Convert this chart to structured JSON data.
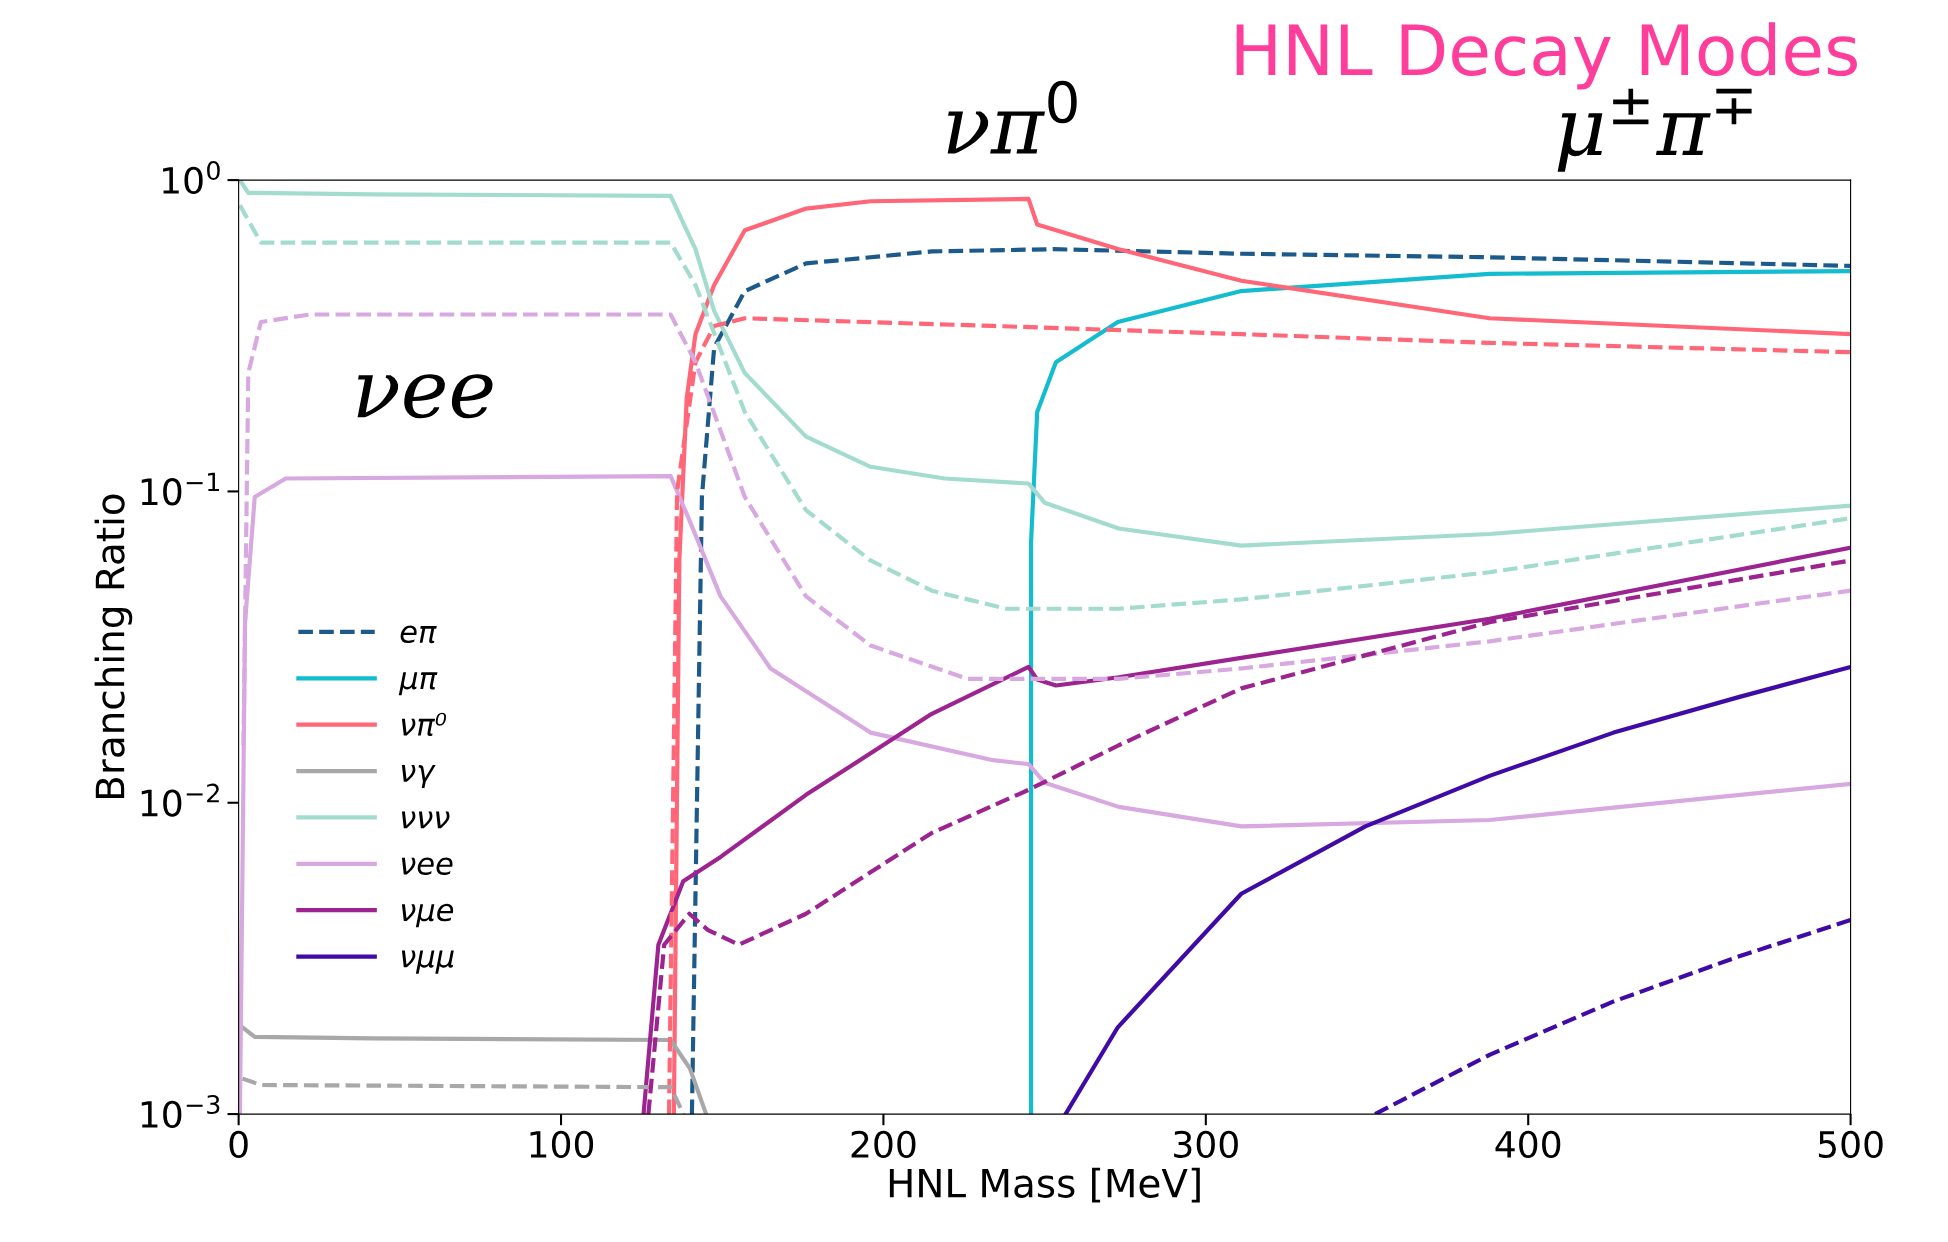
{
  "chart_data": {
    "type": "line",
    "title": "HNL Decay Modes",
    "xlabel": "HNL Mass [MeV]",
    "ylabel": "Branching Ratio",
    "log": "y",
    "xlim": [
      0,
      500
    ],
    "ylim": [
      0.001,
      1
    ],
    "xticks": [
      0,
      100,
      200,
      300,
      400,
      500
    ],
    "yticks": [
      {
        "value": 0.001,
        "label": "10$^{−3}$"
      },
      {
        "value": 0.01,
        "label": "10$^{−2}$"
      },
      {
        "value": 0.1,
        "label": "10$^{−1}$"
      },
      {
        "value": 1,
        "label": "10$^{0}$"
      }
    ],
    "grid": false,
    "legend": "left",
    "marker": "none",
    "annotations": [
      "νπ$^{0}$",
      "μ$^{±}$π$^{∓}$",
      "νee"
    ],
    "series": [
      {
        "name": "eπ",
        "color": "#1c5a8c",
        "line_style": "dashed",
        "x": [
          140.6,
          143.7,
          147.5,
          157,
          176,
          215,
          253,
          311,
          388,
          500
        ],
        "values": [
          0.001,
          0.096,
          0.29,
          0.44,
          0.54,
          0.59,
          0.6,
          0.58,
          0.565,
          0.53
        ]
      },
      {
        "name": "μπ",
        "color": "#13bccf",
        "line_style": "solid",
        "x": [
          245.8,
          245.8,
          247.7,
          253.5,
          272.7,
          311,
          388,
          500
        ],
        "values": [
          0.001,
          0.069,
          0.18,
          0.26,
          0.35,
          0.44,
          0.5,
          0.51
        ]
      },
      {
        "name": "νπ⁰",
        "color": "#ff6677",
        "line_style": "solid",
        "x": [
          135,
          136.7,
          139,
          141.7,
          147.5,
          157,
          176,
          196,
          245,
          247.7,
          273,
          311,
          388,
          500
        ],
        "values": [
          0.001,
          0.06,
          0.2,
          0.32,
          0.46,
          0.69,
          0.81,
          0.855,
          0.87,
          0.72,
          0.6,
          0.475,
          0.36,
          0.32
        ]
      },
      {
        "name": "νγ",
        "color": "#a8a8a8",
        "line_style": "solid",
        "x": [
          1.2,
          5,
          41.6,
          134,
          140,
          145
        ],
        "values": [
          0.0019,
          0.00177,
          0.00175,
          0.00173,
          0.0014,
          0.001
        ]
      },
      {
        "name": "ννν",
        "color": "#a3dccf",
        "line_style": "solid",
        "x": [
          0.4,
          3,
          41.6,
          134,
          141.7,
          147.5,
          157,
          176,
          196,
          219,
          245,
          250,
          273,
          311,
          388,
          500
        ],
        "values": [
          1.0,
          0.91,
          0.9,
          0.89,
          0.6,
          0.38,
          0.24,
          0.15,
          0.12,
          0.11,
          0.106,
          0.092,
          0.076,
          0.067,
          0.073,
          0.09
        ]
      },
      {
        "name": "νee",
        "color": "#d8a8e0",
        "line_style": "solid",
        "x": [
          0.4,
          2,
          5,
          14.6,
          134,
          140,
          149.5,
          165,
          196,
          234,
          245,
          250,
          273,
          311,
          388,
          500
        ],
        "values": [
          0.001,
          0.038,
          0.096,
          0.11,
          0.112,
          0.08,
          0.046,
          0.027,
          0.0168,
          0.0137,
          0.0133,
          0.0116,
          0.0097,
          0.0084,
          0.0088,
          0.0115
        ]
      },
      {
        "name": "νμe",
        "color": "#9c2390",
        "line_style": "solid",
        "x": [
          125.6,
          130.2,
          137.9,
          149.5,
          176,
          215,
          245,
          247.7,
          253.5,
          273,
          311,
          388,
          500
        ],
        "values": [
          0.001,
          0.0035,
          0.0056,
          0.0067,
          0.0106,
          0.0193,
          0.0273,
          0.0249,
          0.0238,
          0.0253,
          0.0292,
          0.039,
          0.066
        ]
      },
      {
        "name": "νμμ",
        "color": "#3f0aa6",
        "line_style": "solid",
        "x": [
          256.5,
          272.7,
          311,
          349.5,
          388,
          426.5,
          465,
          500
        ],
        "values": [
          0.001,
          0.0019,
          0.0051,
          0.0084,
          0.0122,
          0.0168,
          0.0218,
          0.0273
        ]
      },
      {
        "color": "#ff6677",
        "line_style": "dashed",
        "x": [
          133.5,
          136,
          141.7,
          147.5,
          157,
          234,
          311,
          388,
          500
        ],
        "values": [
          0.001,
          0.1,
          0.26,
          0.34,
          0.36,
          0.34,
          0.32,
          0.3,
          0.28
        ]
      },
      {
        "color": "#a8a8a8",
        "line_style": "dashed",
        "x": [
          1.2,
          6.9,
          134,
          138
        ],
        "values": [
          0.0013,
          0.00124,
          0.00122,
          0.001
        ]
      },
      {
        "color": "#a3dccf",
        "line_style": "dashed",
        "x": [
          0.4,
          6.9,
          134,
          141.7,
          157,
          176,
          196,
          215,
          238,
          273,
          311,
          388,
          500
        ],
        "values": [
          0.83,
          0.63,
          0.63,
          0.46,
          0.18,
          0.087,
          0.06,
          0.048,
          0.042,
          0.042,
          0.045,
          0.055,
          0.082
        ]
      },
      {
        "color": "#d8a8e0",
        "line_style": "dashed",
        "x": [
          1.5,
          3,
          6.9,
          22,
          134,
          141.7,
          157,
          176,
          196,
          226,
          273,
          311,
          388,
          500
        ],
        "values": [
          0.0153,
          0.24,
          0.35,
          0.37,
          0.37,
          0.26,
          0.096,
          0.046,
          0.032,
          0.025,
          0.025,
          0.027,
          0.033,
          0.048
        ]
      },
      {
        "color": "#9c2390",
        "line_style": "dashed",
        "x": [
          127.1,
          132,
          139.8,
          145.6,
          155.2,
          176,
          215,
          245,
          273,
          311,
          388,
          500
        ],
        "values": [
          0.001,
          0.0035,
          0.0044,
          0.0039,
          0.0035,
          0.0044,
          0.008,
          0.011,
          0.0153,
          0.0233,
          0.038,
          0.06
        ]
      },
      {
        "color": "#3f0aa6",
        "line_style": "dashed",
        "x": [
          352.5,
          388,
          426.5,
          465,
          500
        ],
        "values": [
          0.001,
          0.00155,
          0.0023,
          0.0032,
          0.0042
        ]
      }
    ]
  }
}
